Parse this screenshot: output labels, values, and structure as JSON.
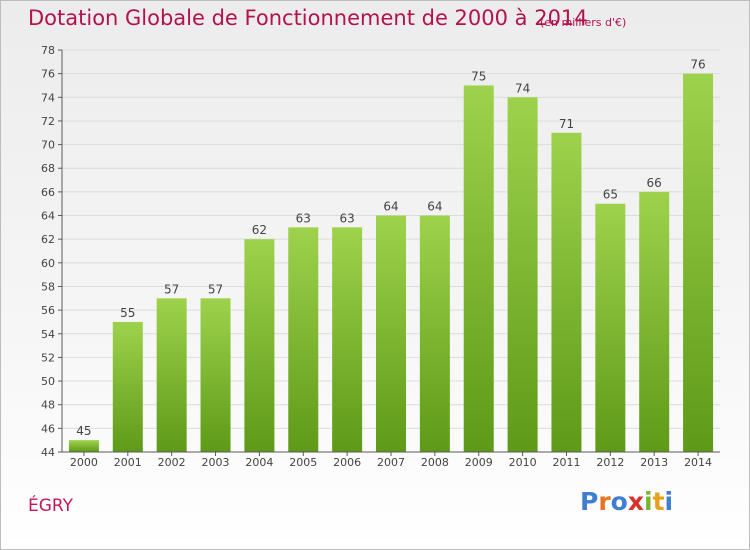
{
  "header": {
    "title": "Dotation Globale de Fonctionnement de 2000 à 2014",
    "subtitle": "(en milliers d'€)"
  },
  "commune": "ÉGRY",
  "logo": {
    "text": "Proxiti",
    "letter_colors": [
      "#3e7fd0",
      "#e8731f",
      "#3e7fd0",
      "#d9302b",
      "#7ab530",
      "#e8a11f",
      "#3e7fd0"
    ]
  },
  "colors": {
    "bar_light": "#9ed24c",
    "bar_dark": "#5e9a18",
    "title": "#b3124e",
    "axis": "#5a5a5a",
    "grid": "#dcdcdc"
  },
  "chart_data": {
    "type": "bar",
    "categories": [
      "2000",
      "2001",
      "2002",
      "2003",
      "2004",
      "2005",
      "2006",
      "2007",
      "2008",
      "2009",
      "2010",
      "2011",
      "2012",
      "2013",
      "2014"
    ],
    "values": [
      45,
      55,
      57,
      57,
      62,
      63,
      63,
      64,
      64,
      75,
      74,
      71,
      65,
      66,
      76
    ],
    "ylim": [
      44,
      78
    ],
    "yticks": [
      44,
      46,
      48,
      50,
      52,
      54,
      56,
      58,
      60,
      62,
      64,
      66,
      68,
      70,
      72,
      74,
      76,
      78
    ],
    "xlabel": "",
    "ylabel": "",
    "grid": true,
    "data_labels": true
  }
}
